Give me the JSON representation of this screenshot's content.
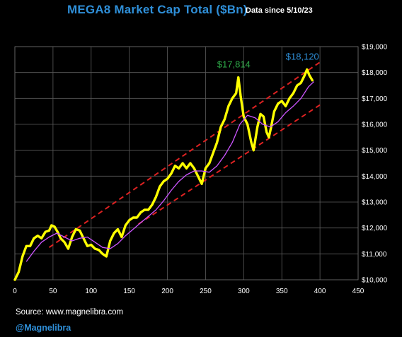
{
  "header": {
    "title": "MEGA8 Market Cap Total ($Bn)",
    "subtitle": "Data since 5/10/23"
  },
  "footer": {
    "source": "Source: www.magnelibra.com",
    "handle": "@Magnelibra"
  },
  "colors": {
    "background": "#000000",
    "price_line": "#ffff00",
    "moving_average": "#cc55ff",
    "channel": "#dd2222",
    "title": "#2f8fd8",
    "annotation_peak1": "#2eaa48",
    "annotation_peak2": "#2f8fd8"
  },
  "chart_data": {
    "type": "line",
    "title": "MEGA8 Market Cap Total ($Bn)",
    "xlim": [
      0,
      450
    ],
    "ylim": [
      10000,
      19000
    ],
    "x_ticks": [
      0,
      50,
      100,
      150,
      200,
      250,
      300,
      350,
      400,
      450
    ],
    "y_ticks": [
      10000,
      11000,
      12000,
      13000,
      14000,
      15000,
      16000,
      17000,
      18000,
      19000
    ],
    "y_tick_labels": [
      "$10,000",
      "$11,000",
      "$12,000",
      "$13,000",
      "$14,000",
      "$15,000",
      "$16,000",
      "$17,000",
      "$18,000",
      "$19,000"
    ],
    "x_tick_labels": [
      "0",
      "50",
      "100",
      "150",
      "200",
      "250",
      "300",
      "350",
      "400",
      "450"
    ],
    "grid": true,
    "series": [
      {
        "style": "price",
        "x": [
          0,
          5,
          10,
          15,
          20,
          25,
          30,
          35,
          40,
          45,
          48,
          52,
          56,
          60,
          65,
          70,
          75,
          80,
          85,
          90,
          95,
          100,
          105,
          110,
          115,
          120,
          125,
          130,
          135,
          140,
          145,
          150,
          155,
          160,
          165,
          170,
          175,
          180,
          185,
          190,
          195,
          200,
          205,
          210,
          215,
          220,
          225,
          230,
          235,
          240,
          245,
          250,
          255,
          260,
          265,
          270,
          275,
          280,
          285,
          290,
          293,
          296,
          300,
          305,
          310,
          313,
          318,
          322,
          326,
          330,
          333,
          336,
          340,
          345,
          350,
          355,
          360,
          365,
          370,
          375,
          380,
          383,
          386,
          390
        ],
        "y": [
          10000,
          10300,
          10900,
          11300,
          11300,
          11600,
          11700,
          11600,
          11850,
          11900,
          12100,
          12050,
          11850,
          11600,
          11450,
          11200,
          11650,
          11950,
          11900,
          11600,
          11300,
          11350,
          11200,
          11150,
          11000,
          10900,
          11500,
          11800,
          11950,
          11650,
          12100,
          12300,
          12400,
          12400,
          12600,
          12700,
          12700,
          12900,
          13200,
          13600,
          13800,
          13900,
          14100,
          14400,
          14300,
          14500,
          14300,
          14500,
          14300,
          14000,
          13700,
          14300,
          14500,
          14900,
          15300,
          15900,
          16200,
          16700,
          17000,
          17200,
          17814,
          17100,
          16300,
          16000,
          15300,
          15000,
          15900,
          16400,
          16300,
          15700,
          15500,
          15900,
          16500,
          16800,
          16900,
          16700,
          17000,
          17200,
          17500,
          17600,
          17900,
          18120,
          17900,
          17700
        ]
      },
      {
        "style": "moving-average",
        "x": [
          15,
          25,
          35,
          45,
          55,
          65,
          75,
          85,
          95,
          105,
          115,
          125,
          135,
          145,
          155,
          165,
          175,
          185,
          195,
          205,
          215,
          225,
          235,
          245,
          255,
          265,
          275,
          285,
          295,
          305,
          315,
          325,
          335,
          345,
          355,
          365,
          375,
          385,
          392
        ],
        "y": [
          10700,
          11100,
          11450,
          11650,
          11800,
          11650,
          11500,
          11600,
          11650,
          11450,
          11250,
          11200,
          11400,
          11700,
          11950,
          12200,
          12450,
          12700,
          13050,
          13450,
          13800,
          14050,
          14200,
          14200,
          14150,
          14400,
          14800,
          15300,
          16000,
          16350,
          16250,
          16000,
          15900,
          16100,
          16450,
          16700,
          17000,
          17450,
          17650
        ]
      }
    ],
    "channel_lines": [
      {
        "x": [
          45,
          400
        ],
        "y": [
          11250,
          18400
        ]
      },
      {
        "x": [
          162,
          400
        ],
        "y": [
          12150,
          16750
        ]
      }
    ],
    "annotations": [
      {
        "text": "$17,814",
        "x": 293,
        "y": 17814
      },
      {
        "text": "$18,120",
        "x": 383,
        "y": 18120
      }
    ]
  }
}
